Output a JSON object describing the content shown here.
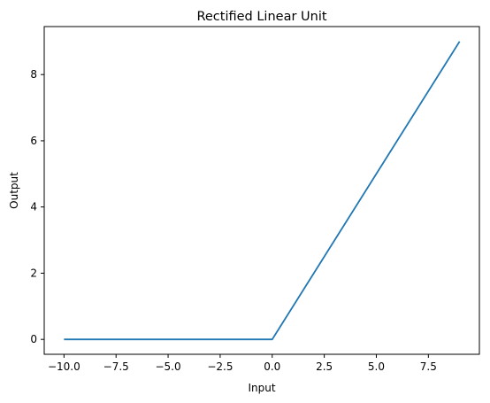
{
  "chart_data": {
    "type": "line",
    "title": "Rectified Linear Unit",
    "xlabel": "Input",
    "ylabel": "Output",
    "xlim": [
      -10.95,
      9.95
    ],
    "ylim": [
      -0.45,
      9.45
    ],
    "xticks": [
      -10.0,
      -7.5,
      -5.0,
      -2.5,
      0.0,
      2.5,
      5.0,
      7.5
    ],
    "xtick_labels": [
      "−10.0",
      "−7.5",
      "−5.0",
      "−2.5",
      "0.0",
      "2.5",
      "5.0",
      "7.5"
    ],
    "yticks": [
      0,
      2,
      4,
      6,
      8
    ],
    "ytick_labels": [
      "0",
      "2",
      "4",
      "6",
      "8"
    ],
    "grid": false,
    "series": [
      {
        "color": "#1f77b4",
        "x": [
          -10,
          0,
          9
        ],
        "y": [
          0,
          0,
          9
        ]
      }
    ]
  }
}
